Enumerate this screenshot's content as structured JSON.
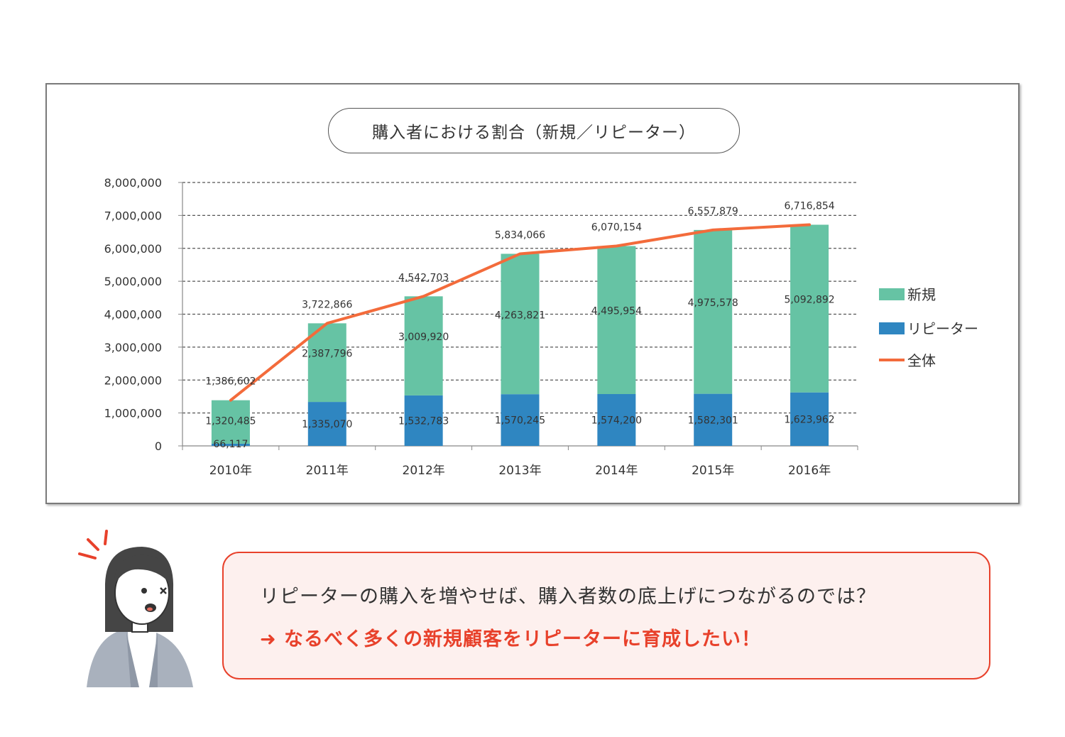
{
  "chart_data": {
    "type": "bar",
    "title": "購入者における割合（新規／リピーター）",
    "categories": [
      "2010年",
      "2011年",
      "2012年",
      "2013年",
      "2014年",
      "2015年",
      "2016年"
    ],
    "ylim": [
      0,
      8000000
    ],
    "yticks": [
      "0",
      "1,000,000",
      "2,000,000",
      "3,000,000",
      "4,000,000",
      "5,000,000",
      "6,000,000",
      "7,000,000",
      "8,000,000"
    ],
    "stacked": true,
    "grid": true,
    "legend_position": "right",
    "series": [
      {
        "name": "新規",
        "kind": "bar",
        "color": "#66c3a4",
        "values": [
          1320485,
          2387796,
          3009920,
          4263821,
          4495954,
          4975578,
          5092892
        ],
        "labels": [
          "1,320,485",
          "2,387,796",
          "3,009,920",
          "4,263,821",
          "4,495,954",
          "4,975,578",
          "5,092,892"
        ]
      },
      {
        "name": "リピーター",
        "kind": "bar",
        "color": "#2f86c1",
        "values": [
          66117,
          1335070,
          1532783,
          1570245,
          1574200,
          1582301,
          1623962
        ],
        "labels": [
          "66,117",
          "1,335,070",
          "1,532,783",
          "1,570,245",
          "1,574,200",
          "1,582,301",
          "1,623,962"
        ]
      },
      {
        "name": "全体",
        "kind": "line",
        "color": "#f36b3b",
        "values": [
          1386602,
          3722866,
          4542703,
          5834066,
          6070154,
          6557879,
          6716854
        ],
        "labels": [
          "1,386,602",
          "3,722,866",
          "4,542,703",
          "5,834,066",
          "6,070,154",
          "6,557,879",
          "6,716,854"
        ]
      }
    ]
  },
  "callout": {
    "question": "リピーターの購入を増やせば、購入者数の底上げにつながるのでは？",
    "arrow": "➜",
    "conclusion": "なるべく多くの新規顧客をリピーターに育成したい！",
    "accent_color": "#e8412b"
  }
}
